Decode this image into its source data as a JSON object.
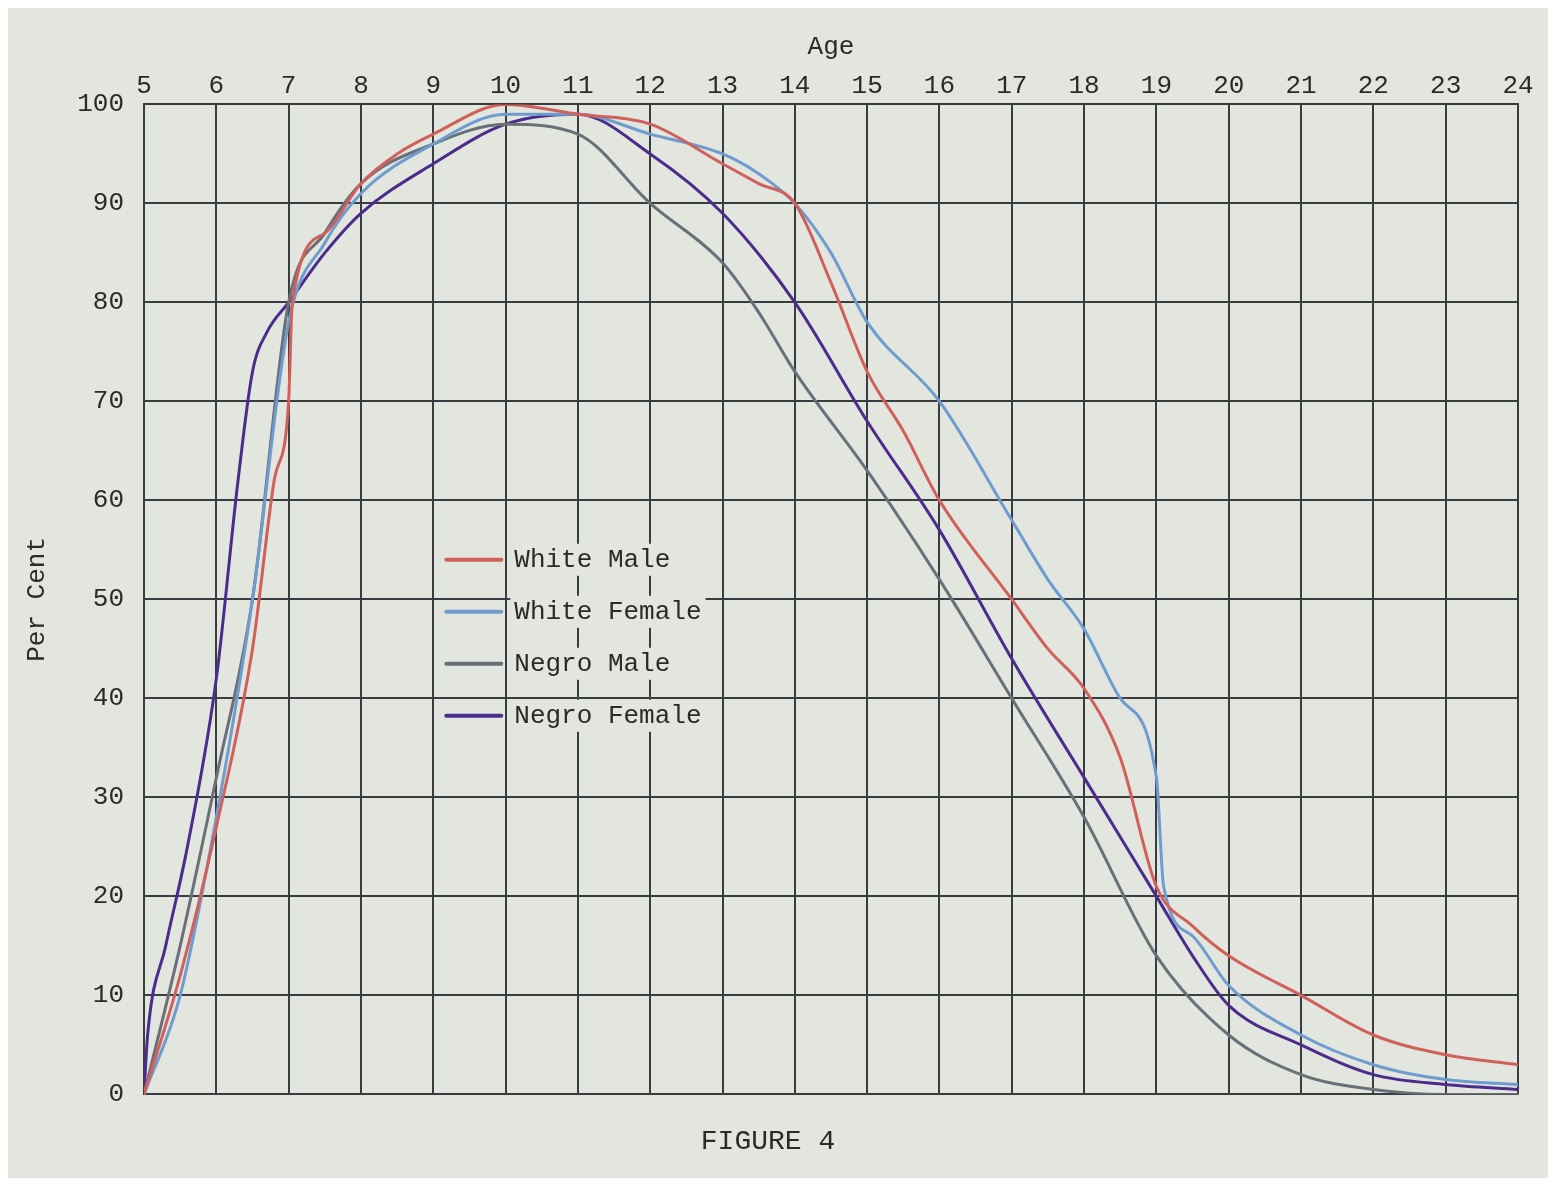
{
  "chart_data": {
    "type": "line",
    "title": "FIGURE 4",
    "xlabel": "Age",
    "ylabel": "Per Cent",
    "xlim": [
      5,
      24
    ],
    "xticks": [
      5,
      6,
      7,
      8,
      9,
      10,
      11,
      12,
      13,
      14,
      15,
      16,
      17,
      18,
      19,
      20,
      21,
      22,
      23,
      24
    ],
    "ylim": [
      0,
      100
    ],
    "yticks": [
      0,
      10,
      20,
      30,
      40,
      50,
      60,
      70,
      80,
      90,
      100
    ],
    "grid": true,
    "legend": "left",
    "marker": "none",
    "line_style": "solid",
    "series": [
      {
        "name": "White Male",
        "color": "#d0605a",
        "x": [
          5,
          5.5,
          6,
          6.5,
          6.8,
          7,
          7.05,
          7.5,
          8,
          8.5,
          9,
          10,
          11,
          12,
          13,
          13.5,
          14,
          14.5,
          15,
          15.5,
          16,
          17,
          17.5,
          18,
          18.5,
          19,
          19.5,
          20,
          21,
          22,
          23,
          24
        ],
        "values": [
          0,
          12,
          27,
          45,
          62,
          70,
          80,
          87,
          92,
          95,
          97,
          100,
          99,
          98,
          94,
          92,
          90,
          82,
          73,
          67,
          60,
          50,
          45,
          41,
          34,
          21,
          17,
          14,
          10,
          6,
          4,
          3
        ]
      },
      {
        "name": "White Female",
        "color": "#6e9ccf",
        "x": [
          5,
          5.5,
          6,
          6.5,
          7,
          7.5,
          8,
          9,
          10,
          11,
          12,
          13,
          13.5,
          14,
          14.5,
          15,
          16,
          17,
          17.5,
          18,
          18.5,
          19,
          19.1,
          19.5,
          20,
          21,
          22,
          23,
          24
        ],
        "values": [
          0,
          10,
          28,
          50,
          78,
          86,
          91,
          96,
          99,
          99,
          97,
          95,
          93,
          90,
          85,
          78,
          70,
          58,
          52,
          47,
          40,
          32,
          21,
          16,
          11,
          6,
          3,
          1.5,
          1
        ]
      },
      {
        "name": "Negro Male",
        "color": "#6a6f78",
        "x": [
          5,
          5.5,
          6,
          6.5,
          7,
          7.5,
          8,
          9,
          10,
          11,
          12,
          13,
          13.5,
          14,
          15,
          16,
          17,
          18,
          19,
          20,
          21,
          22,
          23,
          24
        ],
        "values": [
          0,
          15,
          32,
          50,
          80,
          87,
          92,
          96,
          98,
          97,
          90,
          84,
          79,
          73,
          63,
          52,
          40,
          28,
          14,
          6,
          2,
          0.5,
          0,
          0
        ]
      },
      {
        "name": "Negro Female",
        "color": "#4b2c8c",
        "x": [
          5,
          5.05,
          5.3,
          5.6,
          6,
          6.3,
          6.5,
          6.7,
          7,
          7.5,
          8,
          9,
          10,
          11,
          12,
          13,
          14,
          15,
          16,
          17,
          18,
          19,
          19.5,
          20,
          21,
          22,
          23,
          24
        ],
        "values": [
          0,
          6,
          15,
          25,
          42,
          62,
          73,
          77,
          80,
          85,
          89,
          94,
          98,
          99,
          95,
          89,
          80,
          68,
          57,
          44,
          32,
          20,
          14,
          9,
          5,
          2,
          1,
          0.5
        ]
      }
    ]
  }
}
